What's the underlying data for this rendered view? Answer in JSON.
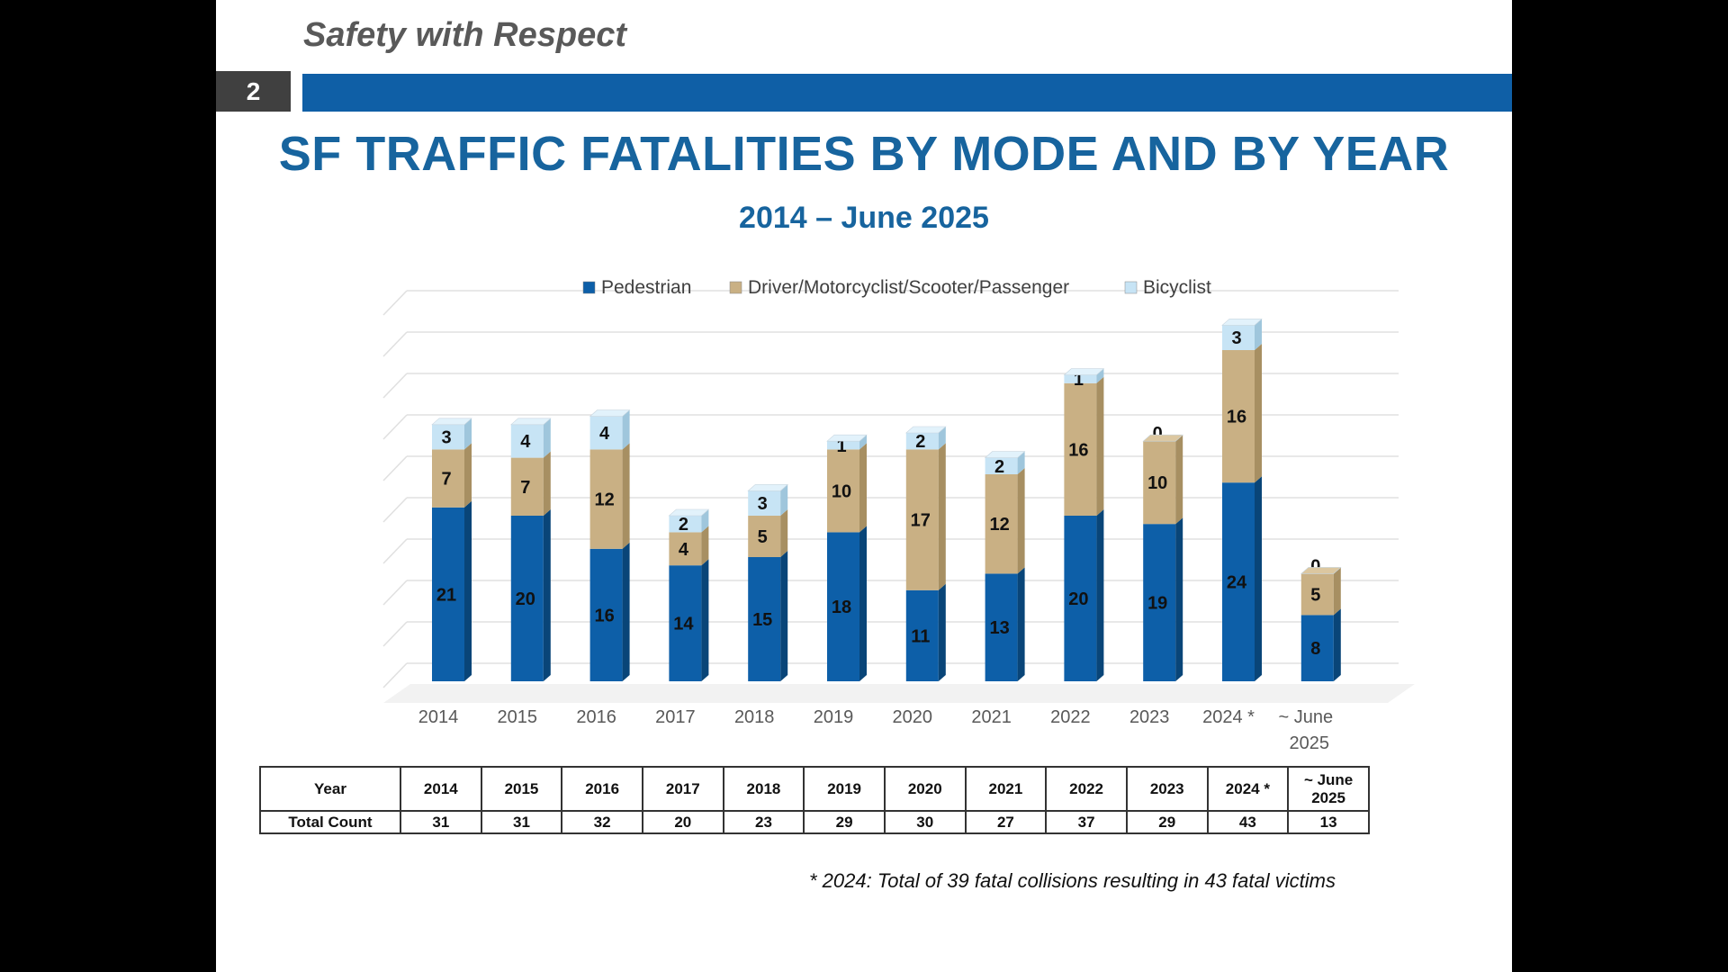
{
  "slide": {
    "tagline": "Safety with Respect",
    "page_number": "2",
    "title": "SF TRAFFIC FATALITIES BY MODE AND BY YEAR",
    "subtitle": "2014 – June 2025",
    "footnote": "* 2024: Total of 39 fatal collisions resulting in 43 fatal victims"
  },
  "colors": {
    "accent_blue": "#0f5fa6",
    "title_blue": "#17649e",
    "pedestrian": "#0d5fa8",
    "driver": "#c9b084",
    "bicyclist": "#c7e4f5"
  },
  "chart_data": {
    "type": "bar",
    "stacked": true,
    "title": "SF TRAFFIC FATALITIES BY MODE AND BY YEAR",
    "subtitle": "2014 – June 2025",
    "categories": [
      "2014",
      "2015",
      "2016",
      "2017",
      "2018",
      "2019",
      "2020",
      "2021",
      "2022",
      "2023",
      "2024 *",
      "~ June 2025"
    ],
    "series": [
      {
        "name": "Pedestrian",
        "values": [
          21,
          20,
          16,
          14,
          15,
          18,
          11,
          13,
          20,
          19,
          24,
          8
        ]
      },
      {
        "name": "Driver/Motorcyclist/Scooter/Passenger",
        "values": [
          7,
          7,
          12,
          4,
          5,
          10,
          17,
          12,
          16,
          10,
          16,
          5
        ]
      },
      {
        "name": "Bicyclist",
        "values": [
          3,
          4,
          4,
          2,
          3,
          1,
          2,
          2,
          1,
          0,
          3,
          0
        ]
      }
    ],
    "ylim": [
      0,
      45
    ],
    "grid": true,
    "legend": "top",
    "xlabel": "",
    "ylabel": ""
  },
  "table": {
    "row_headers": [
      "Year",
      "Total Count"
    ],
    "years": [
      "2014",
      "2015",
      "2016",
      "2017",
      "2018",
      "2019",
      "2020",
      "2021",
      "2022",
      "2023",
      "2024 *",
      "~ June 2025"
    ],
    "totals": [
      "31",
      "31",
      "32",
      "20",
      "23",
      "29",
      "30",
      "27",
      "37",
      "29",
      "43",
      "13"
    ]
  }
}
